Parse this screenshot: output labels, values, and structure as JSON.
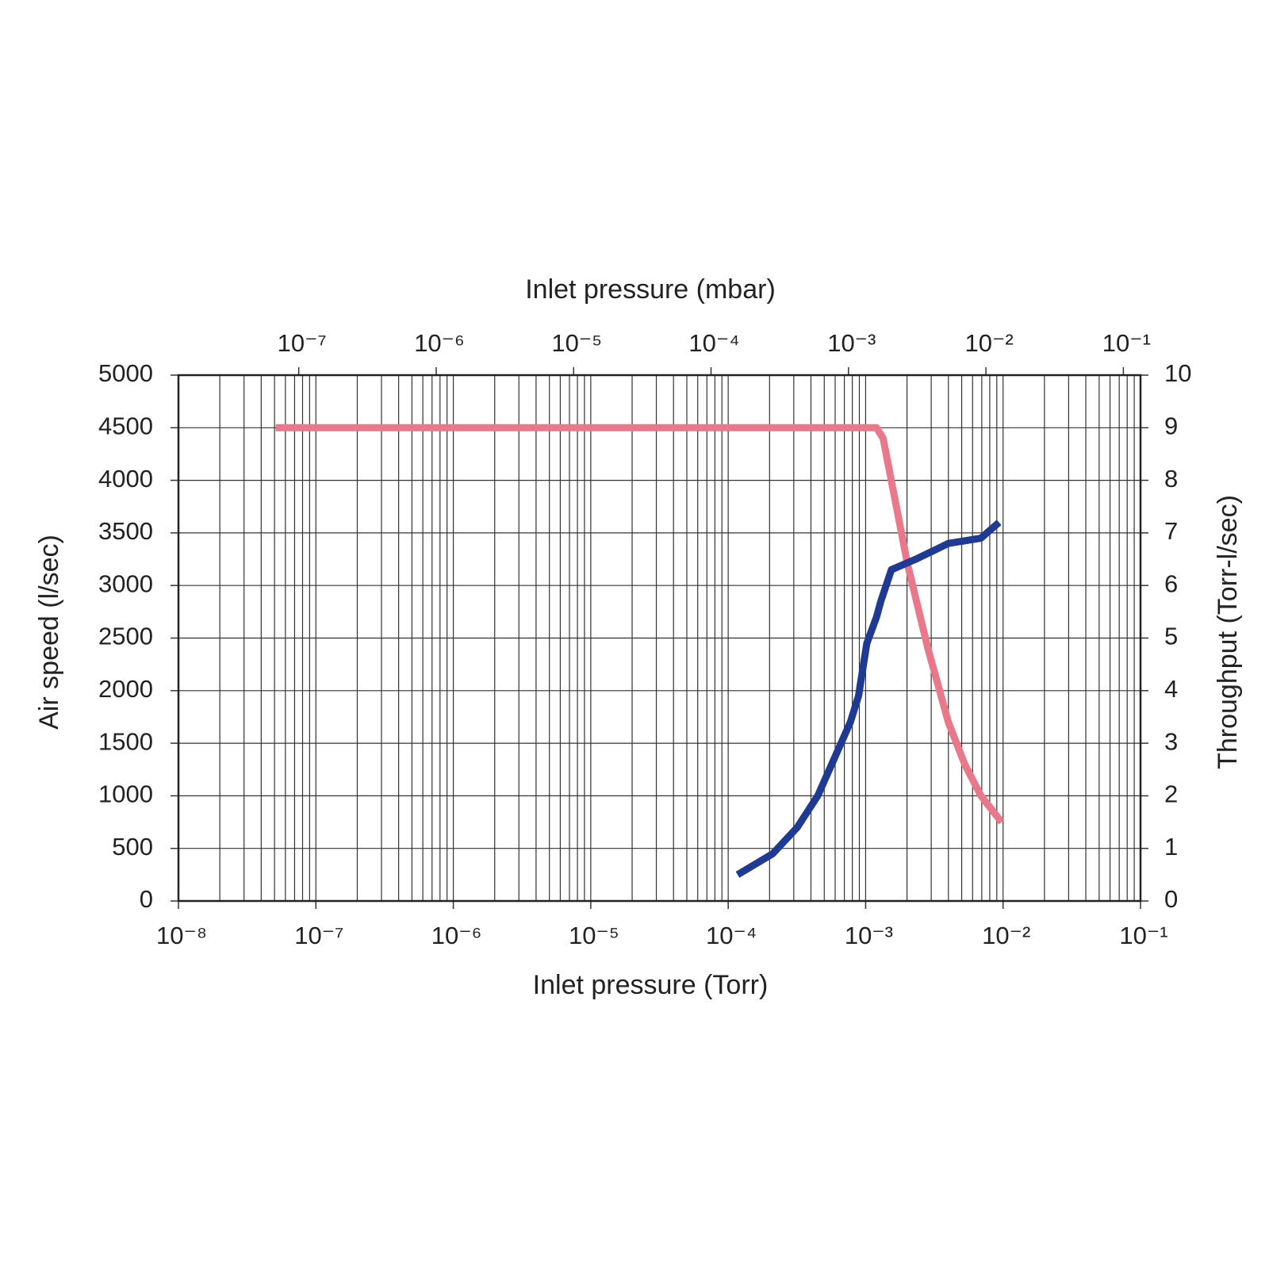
{
  "chart_data": {
    "type": "line",
    "title_top": "Inlet pressure (mbar)",
    "x_label": "Inlet pressure (Torr)",
    "y_label": "Air speed (l/sec)",
    "y2_label": "Throughput (Torr-l/sec)",
    "xlog": true,
    "x2log": true,
    "grid": true,
    "xlim": [
      1e-08,
      0.1
    ],
    "xticks": [
      {
        "value": 1e-08,
        "label": "10⁻⁸"
      },
      {
        "value": 1e-07,
        "label": "10⁻⁷"
      },
      {
        "value": 1e-06,
        "label": "10⁻⁶"
      },
      {
        "value": 1e-05,
        "label": "10⁻⁵"
      },
      {
        "value": 0.0001,
        "label": "10⁻⁴"
      },
      {
        "value": 0.001,
        "label": "10⁻³"
      },
      {
        "value": 0.01,
        "label": "10⁻²"
      },
      {
        "value": 0.1,
        "label": "10⁻¹"
      }
    ],
    "x2lim": [
      1.333e-08,
      0.1333
    ],
    "x2ticks": [
      {
        "value": 1e-07,
        "label": "10⁻⁷"
      },
      {
        "value": 1e-06,
        "label": "10⁻⁶"
      },
      {
        "value": 1e-05,
        "label": "10⁻⁵"
      },
      {
        "value": 0.0001,
        "label": "10⁻⁴"
      },
      {
        "value": 0.001,
        "label": "10⁻³"
      },
      {
        "value": 0.01,
        "label": "10⁻²"
      },
      {
        "value": 0.1,
        "label": "10⁻¹"
      }
    ],
    "ylim": [
      0,
      5000
    ],
    "yticks": [
      0,
      500,
      1000,
      1500,
      2000,
      2500,
      3000,
      3500,
      4000,
      4500,
      5000
    ],
    "y2lim": [
      0,
      10
    ],
    "y2ticks": [
      0,
      1,
      2,
      3,
      4,
      5,
      6,
      7,
      8,
      9,
      10
    ],
    "series": [
      {
        "color": "#e8788a",
        "axis": "y",
        "x": [
          5.1e-08,
          0.0012,
          0.00134,
          0.00202,
          0.00284,
          0.004,
          0.00526,
          0.0069,
          0.00975
        ],
        "values": [
          4500,
          4500,
          4400,
          3200,
          2400,
          1700,
          1300,
          1000,
          750
        ]
      },
      {
        "color": "#1f3a93",
        "axis": "y2",
        "x": [
          0.000117,
          0.000211,
          0.000318,
          0.000448,
          0.000589,
          0.000774,
          0.000888,
          0.00102,
          0.0012,
          0.00129,
          0.00154,
          0.00232,
          0.004,
          0.0069,
          0.00935
        ],
        "values": [
          0.5,
          0.9,
          1.4,
          2.0,
          2.7,
          3.4,
          3.9,
          4.9,
          5.4,
          5.7,
          6.3,
          6.5,
          6.8,
          6.9,
          7.2
        ]
      }
    ]
  }
}
